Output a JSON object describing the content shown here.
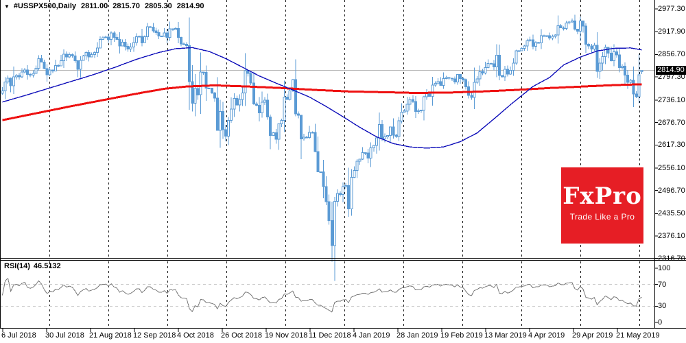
{
  "header": {
    "collapse_icon": "▼",
    "symbol_period": "#USSPX500,Daily",
    "open": "2811.00",
    "high": "2815.70",
    "low": "2805.30",
    "close": "2814.90"
  },
  "rsi_label": {
    "name": "RSI(14)",
    "value": "46.5132"
  },
  "logo": {
    "brand": "FxPro",
    "tagline": "Trade Like a Pro",
    "bg": "#e61e25"
  },
  "colors": {
    "candle": "#5b9bd5",
    "candle_hollow_fill": "#ffffff",
    "ma_fast": "#1313bb",
    "ma_slow": "#ee1111",
    "grid": "#1a1a1a",
    "rsi_line": "#7a7a7a",
    "rsi_level": "#c9c9c9",
    "current_price_line": "#b4b4b4",
    "badge_bg": "#000000",
    "badge_text": "#ffffff",
    "axis": "#000000"
  },
  "chart_data": {
    "type": "candlestick",
    "symbol": "#USSPX500",
    "timeframe": "Daily",
    "title": "#USSPX500,Daily 2811.00 2815.70 2805.30 2814.90",
    "current_price": 2814.9,
    "current_price_label": "2814.90",
    "last_ohlc": {
      "open": 2811.0,
      "high": 2815.7,
      "low": 2805.3,
      "close": 2814.9
    },
    "ylim": [
      2311,
      3001
    ],
    "y_ticks": [
      "2977.30",
      "2917.90",
      "2856.70",
      "2797.30",
      "2736.10",
      "2676.70",
      "2617.30",
      "2556.10",
      "2496.70",
      "2435.50",
      "2376.10",
      "2316.70"
    ],
    "x_tick_dates": [
      "6 Jul 2018",
      "30 Jul 2018",
      "21 Aug 2018",
      "12 Sep 2018",
      "4 Oct 2018",
      "26 Oct 2018",
      "19 Nov 2018",
      "11 Dec 2018",
      "4 Jan 2019",
      "28 Jan 2019",
      "19 Feb 2019",
      "13 Mar 2019",
      "4 Apr 2019",
      "29 Apr 2019",
      "21 May 2019"
    ],
    "closes": [
      2760,
      2784,
      2794,
      2774,
      2798,
      2801,
      2798,
      2810,
      2816,
      2804,
      2802,
      2807,
      2820,
      2846,
      2837,
      2819,
      2803,
      2816,
      2813,
      2828,
      2827,
      2840,
      2858,
      2850,
      2857,
      2853,
      2840,
      2818,
      2841,
      2853,
      2862,
      2850,
      2857,
      2862,
      2874,
      2897,
      2901,
      2903,
      2897,
      2914,
      2902,
      2897,
      2879,
      2889,
      2878,
      2871,
      2877,
      2888,
      2904,
      2905,
      2888,
      2904,
      2930,
      2929,
      2919,
      2915,
      2906,
      2905,
      2914,
      2902,
      2925,
      2923,
      2926,
      2902,
      2885,
      2884,
      2880,
      2785,
      2728,
      2767,
      2750,
      2810,
      2809,
      2768,
      2768,
      2755,
      2741,
      2656,
      2706,
      2658,
      2641,
      2682,
      2712,
      2740,
      2723,
      2738,
      2755,
      2814,
      2807,
      2781,
      2726,
      2722,
      2702,
      2730,
      2736,
      2691,
      2642,
      2650,
      2632,
      2673,
      2682,
      2744,
      2738,
      2760,
      2790,
      2700,
      2696,
      2633,
      2638,
      2637,
      2651,
      2651,
      2600,
      2546,
      2546,
      2507,
      2467,
      2417,
      2351,
      2468,
      2489,
      2486,
      2507,
      2510,
      2448,
      2532,
      2550,
      2574,
      2580,
      2597,
      2596,
      2582,
      2610,
      2616,
      2636,
      2671,
      2633,
      2639,
      2642,
      2665,
      2643,
      2640,
      2681,
      2704,
      2707,
      2725,
      2738,
      2732,
      2706,
      2708,
      2710,
      2745,
      2753,
      2746,
      2776,
      2780,
      2785,
      2775,
      2793,
      2796,
      2794,
      2792,
      2784,
      2804,
      2793,
      2790,
      2771,
      2749,
      2743,
      2783,
      2792,
      2811,
      2808,
      2822,
      2833,
      2832,
      2824,
      2855,
      2801,
      2798,
      2818,
      2805,
      2815,
      2834,
      2867,
      2867,
      2873,
      2879,
      2893,
      2896,
      2878,
      2888,
      2888,
      2907,
      2906,
      2907,
      2900,
      2905,
      2908,
      2933,
      2927,
      2926,
      2940,
      2943,
      2946,
      2924,
      2918,
      2946,
      2932,
      2884,
      2879,
      2871,
      2881,
      2812,
      2834,
      2851,
      2876,
      2860,
      2840,
      2864,
      2856,
      2822,
      2826,
      2802,
      2783,
      2789,
      2752,
      2745,
      2803,
      2814.9
    ],
    "ma_fast": {
      "name": "blue moving average",
      "points": [
        [
          0,
          2731
        ],
        [
          8,
          2748
        ],
        [
          16,
          2766
        ],
        [
          24,
          2784
        ],
        [
          32,
          2802
        ],
        [
          40,
          2822
        ],
        [
          48,
          2844
        ],
        [
          56,
          2862
        ],
        [
          62,
          2872
        ],
        [
          68,
          2875
        ],
        [
          74,
          2865
        ],
        [
          80,
          2846
        ],
        [
          86,
          2823
        ],
        [
          92,
          2800
        ],
        [
          98,
          2781
        ],
        [
          104,
          2763
        ],
        [
          110,
          2744
        ],
        [
          116,
          2719
        ],
        [
          122,
          2692
        ],
        [
          128,
          2664
        ],
        [
          134,
          2639
        ],
        [
          140,
          2621
        ],
        [
          146,
          2612
        ],
        [
          152,
          2609
        ],
        [
          158,
          2612
        ],
        [
          164,
          2626
        ],
        [
          170,
          2649
        ],
        [
          176,
          2686
        ],
        [
          182,
          2724
        ],
        [
          186,
          2748
        ],
        [
          190,
          2772
        ],
        [
          196,
          2796
        ],
        [
          201,
          2829
        ],
        [
          207,
          2850
        ],
        [
          213,
          2866
        ],
        [
          219,
          2873
        ],
        [
          225,
          2874
        ],
        [
          229,
          2869
        ]
      ]
    },
    "ma_slow": {
      "name": "red moving average",
      "points": [
        [
          0,
          2683
        ],
        [
          12,
          2701
        ],
        [
          24,
          2719
        ],
        [
          36,
          2736
        ],
        [
          48,
          2753
        ],
        [
          58,
          2766
        ],
        [
          66,
          2772
        ],
        [
          76,
          2775
        ],
        [
          88,
          2772
        ],
        [
          100,
          2768
        ],
        [
          112,
          2763
        ],
        [
          124,
          2759
        ],
        [
          136,
          2757
        ],
        [
          148,
          2755
        ],
        [
          160,
          2756
        ],
        [
          172,
          2759
        ],
        [
          184,
          2763
        ],
        [
          196,
          2768
        ],
        [
          208,
          2772
        ],
        [
          220,
          2776
        ],
        [
          229,
          2778
        ]
      ]
    },
    "rsi": {
      "period": 14,
      "last_value": 46.5132,
      "range": [
        0,
        100
      ],
      "levels": [
        70,
        30
      ],
      "y_tick_labels": [
        "100",
        "70",
        "30",
        "0"
      ]
    }
  }
}
